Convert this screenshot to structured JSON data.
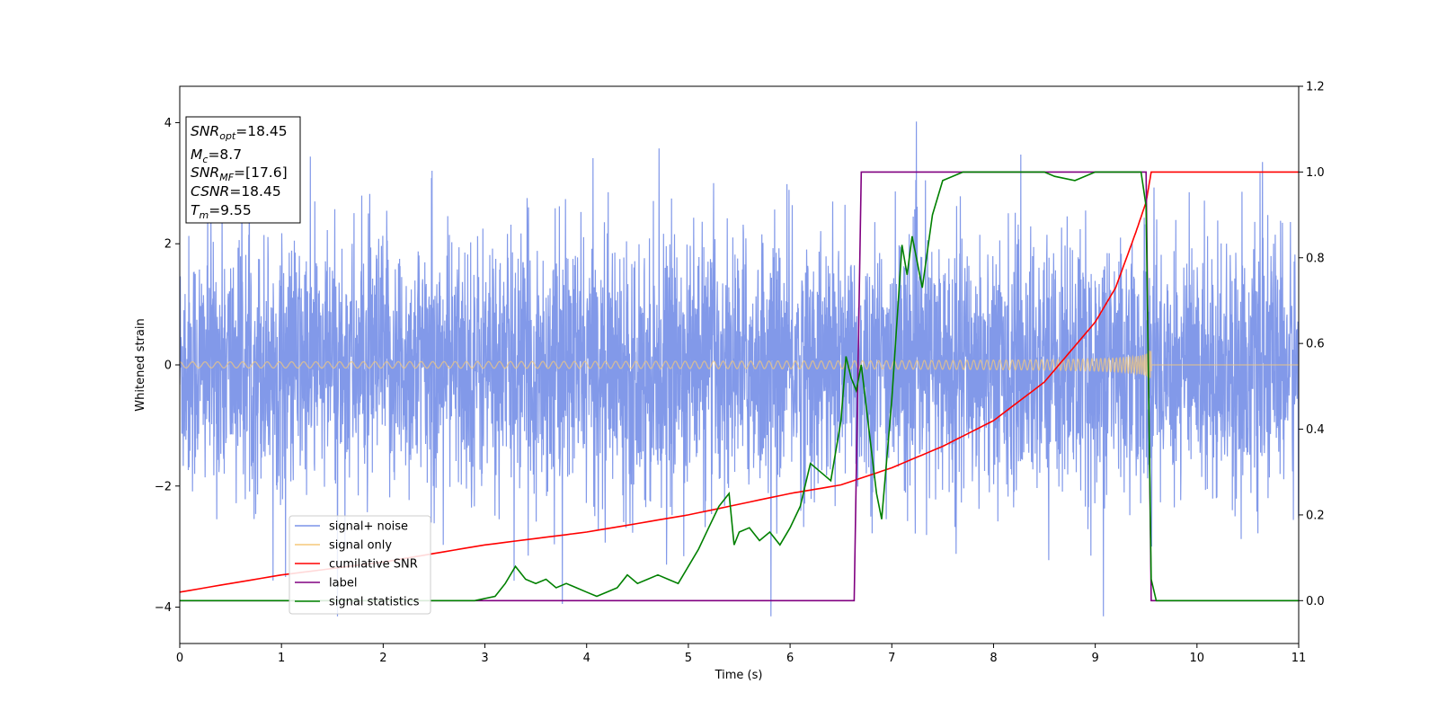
{
  "chart_data": {
    "type": "line",
    "xlabel": "Time (s)",
    "ylabel": "Whitened strain",
    "xlim": [
      0,
      11
    ],
    "ylim": [
      -4.6,
      4.6
    ],
    "y2lim": [
      -0.1,
      1.2
    ],
    "x_ticks": [
      "0",
      "1",
      "2",
      "3",
      "4",
      "5",
      "6",
      "7",
      "8",
      "9",
      "10",
      "11"
    ],
    "y_ticks": [
      "−4",
      "−2",
      "0",
      "2",
      "4"
    ],
    "y2_ticks": [
      "0.0",
      "0.2",
      "0.4",
      "0.6",
      "0.8",
      "1.0",
      "1.2"
    ],
    "grid": false,
    "legend_placement": "lower-left",
    "legend": [
      {
        "label": "signal+ noise",
        "color": "#7b93e8"
      },
      {
        "label": "signal only",
        "color": "#f5c97a"
      },
      {
        "label": "cumilative SNR",
        "color": "#ff0000"
      },
      {
        "label": "label",
        "color": "#800080"
      },
      {
        "label": "signal statistics",
        "color": "#008000"
      }
    ],
    "info_box": [
      {
        "sym": "SNR",
        "sub": "opt",
        "val": "=18.45"
      },
      {
        "sym": "M",
        "sub": "c",
        "val": "=8.7"
      },
      {
        "sym": "SNR",
        "sub": "MF",
        "val": "=[17.6]"
      },
      {
        "sym": "CSNR",
        "sub": "",
        "val": "=18.45"
      },
      {
        "sym": "T",
        "sub": "m",
        "val": "=9.55"
      }
    ],
    "series": [
      {
        "name": "signal+ noise",
        "axis": "left",
        "color": "#7b93e8",
        "noise_sigma": 1.0,
        "x_range": [
          0,
          11
        ]
      },
      {
        "name": "signal only",
        "axis": "left",
        "color": "#f5c97a",
        "merger_time": 9.55,
        "peak_amplitude": 1.3,
        "x_range": [
          0,
          11
        ]
      },
      {
        "name": "cumilative SNR",
        "axis": "right",
        "color": "#ff0000",
        "x": [
          0,
          1,
          2,
          3,
          4,
          5,
          6,
          6.5,
          7,
          7.5,
          8,
          8.5,
          9,
          9.2,
          9.4,
          9.5,
          9.55,
          10,
          11
        ],
        "y": [
          0.02,
          0.06,
          0.09,
          0.13,
          0.16,
          0.2,
          0.25,
          0.27,
          0.31,
          0.36,
          0.42,
          0.51,
          0.65,
          0.73,
          0.86,
          0.93,
          1.0,
          1.0,
          1.0
        ]
      },
      {
        "name": "label",
        "axis": "right",
        "color": "#800080",
        "x": [
          0,
          6.63,
          6.7,
          9.5,
          9.55,
          11
        ],
        "y": [
          0,
          0,
          1,
          1,
          0,
          0
        ]
      },
      {
        "name": "signal statistics",
        "axis": "right",
        "color": "#008000",
        "x": [
          0,
          0.5,
          1,
          1.5,
          2,
          2.5,
          2.9,
          3.1,
          3.2,
          3.3,
          3.4,
          3.5,
          3.6,
          3.7,
          3.8,
          3.9,
          4.0,
          4.1,
          4.2,
          4.3,
          4.4,
          4.5,
          4.6,
          4.7,
          4.8,
          4.9,
          5.0,
          5.1,
          5.2,
          5.3,
          5.4,
          5.45,
          5.5,
          5.6,
          5.7,
          5.8,
          5.9,
          6.0,
          6.1,
          6.2,
          6.3,
          6.4,
          6.5,
          6.55,
          6.6,
          6.65,
          6.7,
          6.75,
          6.8,
          6.85,
          6.9,
          7.0,
          7.1,
          7.15,
          7.2,
          7.3,
          7.4,
          7.5,
          7.7,
          8.0,
          8.3,
          8.5,
          8.6,
          8.8,
          9.0,
          9.3,
          9.45,
          9.5,
          9.55,
          9.6,
          10,
          11
        ],
        "y": [
          0,
          0,
          0,
          0,
          0,
          0,
          0,
          0.01,
          0.04,
          0.08,
          0.05,
          0.04,
          0.05,
          0.03,
          0.04,
          0.03,
          0.02,
          0.01,
          0.02,
          0.03,
          0.06,
          0.04,
          0.05,
          0.06,
          0.05,
          0.04,
          0.08,
          0.12,
          0.17,
          0.22,
          0.25,
          0.13,
          0.16,
          0.17,
          0.14,
          0.16,
          0.13,
          0.17,
          0.22,
          0.32,
          0.3,
          0.28,
          0.42,
          0.57,
          0.52,
          0.49,
          0.55,
          0.45,
          0.35,
          0.25,
          0.19,
          0.47,
          0.83,
          0.76,
          0.85,
          0.73,
          0.9,
          0.98,
          1.0,
          1.0,
          1.0,
          1.0,
          0.99,
          0.98,
          1.0,
          1.0,
          1.0,
          0.92,
          0.05,
          0,
          0,
          0
        ]
      }
    ]
  }
}
